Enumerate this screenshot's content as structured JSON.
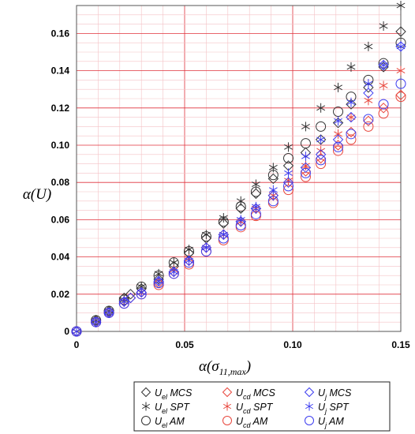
{
  "chart_data": {
    "type": "scatter",
    "xlabel": "α(σ",
    "xlabel_sub": "11,max",
    "xlabel_close": ")",
    "ylabel": "α(U)",
    "xlim": [
      0,
      0.15
    ],
    "ylim": [
      0,
      0.175
    ],
    "x_ticks": [
      "0",
      "0.05",
      "0.10",
      "0.15"
    ],
    "y_ticks": [
      "0",
      "0.02",
      "0.04",
      "0.06",
      "0.08",
      "0.10",
      "0.12",
      "0.14",
      "0.16"
    ],
    "grid": true,
    "colors": {
      "el": "#333333",
      "cd": "#e8463c",
      "j": "#3c3cf0",
      "grid_major": "#e0323c",
      "grid_minor": "#f4c2c6"
    },
    "legend_position": "bottom",
    "series": [
      {
        "name": "MCS",
        "group": "el",
        "group_label": "U",
        "group_sub": "el",
        "marker": "diamond",
        "x": [
          0,
          0.009,
          0.015,
          0.022,
          0.025,
          0.03,
          0.038,
          0.045,
          0.052,
          0.06,
          0.068,
          0.076,
          0.083,
          0.091,
          0.098,
          0.106,
          0.113,
          0.121,
          0.127,
          0.135,
          0.142,
          0.15
        ],
        "y": [
          0,
          0.006,
          0.011,
          0.018,
          0.02,
          0.023,
          0.028,
          0.035,
          0.042,
          0.05,
          0.058,
          0.066,
          0.074,
          0.082,
          0.089,
          0.096,
          0.103,
          0.112,
          0.122,
          0.131,
          0.142,
          0.161
        ]
      },
      {
        "name": "SPT",
        "group": "el",
        "group_label": "U",
        "group_sub": "el",
        "marker": "star",
        "x": [
          0,
          0.009,
          0.015,
          0.022,
          0.03,
          0.038,
          0.045,
          0.052,
          0.06,
          0.068,
          0.076,
          0.083,
          0.091,
          0.098,
          0.106,
          0.113,
          0.121,
          0.127,
          0.135,
          0.142,
          0.15
        ],
        "y": [
          0,
          0.006,
          0.011,
          0.017,
          0.024,
          0.031,
          0.037,
          0.044,
          0.052,
          0.061,
          0.07,
          0.079,
          0.088,
          0.099,
          0.11,
          0.12,
          0.131,
          0.142,
          0.153,
          0.164,
          0.175
        ]
      },
      {
        "name": "AM",
        "group": "el",
        "group_label": "U",
        "group_sub": "el",
        "marker": "circle",
        "x": [
          0,
          0.009,
          0.015,
          0.022,
          0.03,
          0.038,
          0.045,
          0.052,
          0.06,
          0.068,
          0.076,
          0.083,
          0.091,
          0.098,
          0.106,
          0.113,
          0.121,
          0.127,
          0.135,
          0.142,
          0.15
        ],
        "y": [
          0,
          0.006,
          0.011,
          0.017,
          0.024,
          0.03,
          0.037,
          0.043,
          0.051,
          0.059,
          0.067,
          0.075,
          0.084,
          0.093,
          0.101,
          0.11,
          0.118,
          0.126,
          0.135,
          0.144,
          0.155
        ]
      },
      {
        "name": "MCS",
        "group": "cd",
        "group_label": "U",
        "group_sub": "cd",
        "marker": "diamond",
        "x": [
          0,
          0.009,
          0.015,
          0.022,
          0.025,
          0.03,
          0.038,
          0.045,
          0.052,
          0.06,
          0.068,
          0.076,
          0.083,
          0.091,
          0.098,
          0.106,
          0.113,
          0.121,
          0.127,
          0.135,
          0.142,
          0.15
        ],
        "y": [
          0,
          0.005,
          0.01,
          0.016,
          0.018,
          0.021,
          0.026,
          0.032,
          0.038,
          0.045,
          0.052,
          0.059,
          0.066,
          0.073,
          0.08,
          0.086,
          0.093,
          0.1,
          0.107,
          0.113,
          0.12,
          0.127
        ]
      },
      {
        "name": "SPT",
        "group": "cd",
        "group_label": "U",
        "group_sub": "cd",
        "marker": "star",
        "x": [
          0,
          0.009,
          0.015,
          0.022,
          0.03,
          0.038,
          0.045,
          0.052,
          0.06,
          0.068,
          0.076,
          0.083,
          0.091,
          0.098,
          0.106,
          0.113,
          0.121,
          0.127,
          0.135,
          0.142,
          0.15
        ],
        "y": [
          0,
          0.005,
          0.01,
          0.016,
          0.021,
          0.027,
          0.033,
          0.039,
          0.045,
          0.052,
          0.059,
          0.066,
          0.073,
          0.081,
          0.089,
          0.097,
          0.106,
          0.115,
          0.124,
          0.132,
          0.14
        ]
      },
      {
        "name": "AM",
        "group": "cd",
        "group_label": "U",
        "group_sub": "cd",
        "marker": "circle",
        "x": [
          0,
          0.009,
          0.015,
          0.022,
          0.03,
          0.038,
          0.045,
          0.052,
          0.06,
          0.068,
          0.076,
          0.083,
          0.091,
          0.098,
          0.106,
          0.113,
          0.121,
          0.127,
          0.135,
          0.142,
          0.15
        ],
        "y": [
          0,
          0.005,
          0.01,
          0.015,
          0.02,
          0.025,
          0.031,
          0.036,
          0.043,
          0.049,
          0.056,
          0.062,
          0.069,
          0.076,
          0.083,
          0.09,
          0.097,
          0.103,
          0.11,
          0.117,
          0.126
        ]
      },
      {
        "name": "MCS",
        "group": "j",
        "group_label": "U",
        "group_sub": "j",
        "marker": "diamond",
        "x": [
          0,
          0.009,
          0.015,
          0.022,
          0.025,
          0.03,
          0.038,
          0.045,
          0.052,
          0.06,
          0.068,
          0.076,
          0.083,
          0.091,
          0.098,
          0.106,
          0.113,
          0.121,
          0.127,
          0.135,
          0.142,
          0.15
        ],
        "y": [
          0,
          0.005,
          0.01,
          0.016,
          0.018,
          0.021,
          0.027,
          0.032,
          0.038,
          0.045,
          0.052,
          0.059,
          0.066,
          0.073,
          0.08,
          0.088,
          0.095,
          0.103,
          0.115,
          0.128,
          0.143,
          0.153
        ]
      },
      {
        "name": "SPT",
        "group": "j",
        "group_label": "U",
        "group_sub": "j",
        "marker": "star",
        "x": [
          0,
          0.009,
          0.015,
          0.022,
          0.03,
          0.038,
          0.045,
          0.052,
          0.06,
          0.068,
          0.076,
          0.083,
          0.091,
          0.098,
          0.106,
          0.113,
          0.121,
          0.127,
          0.135,
          0.142,
          0.15
        ],
        "y": [
          0,
          0.005,
          0.01,
          0.016,
          0.021,
          0.027,
          0.032,
          0.038,
          0.045,
          0.052,
          0.06,
          0.067,
          0.076,
          0.085,
          0.094,
          0.103,
          0.113,
          0.123,
          0.133,
          0.143,
          0.153
        ]
      },
      {
        "name": "AM",
        "group": "j",
        "group_label": "U",
        "group_sub": "j",
        "marker": "circle",
        "x": [
          0,
          0.009,
          0.015,
          0.022,
          0.03,
          0.038,
          0.045,
          0.052,
          0.06,
          0.068,
          0.076,
          0.083,
          0.091,
          0.098,
          0.106,
          0.113,
          0.121,
          0.127,
          0.135,
          0.142,
          0.15
        ],
        "y": [
          0,
          0.005,
          0.01,
          0.015,
          0.02,
          0.026,
          0.031,
          0.037,
          0.043,
          0.05,
          0.057,
          0.063,
          0.07,
          0.078,
          0.085,
          0.092,
          0.099,
          0.106,
          0.114,
          0.122,
          0.133
        ]
      }
    ]
  }
}
